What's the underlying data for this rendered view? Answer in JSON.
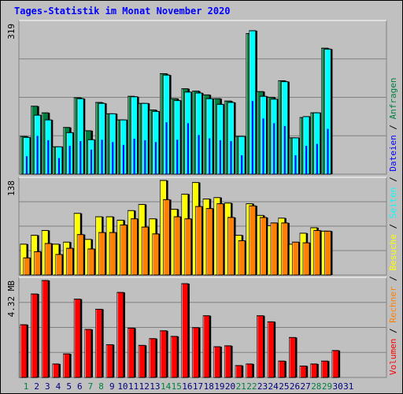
{
  "title": "Tages-Statistik im Monat November 2020",
  "colors": {
    "background": "#c0c0c0",
    "anfragen": "#008040",
    "dateien": "#0000ff",
    "seiten": "#00ffff",
    "besuche": "#ffff00",
    "rechner": "#ff8000",
    "volumen": "#ff0000",
    "weekday_label": "#000080",
    "weekend_label": "#008040"
  },
  "side_legend": {
    "sep": " / ",
    "anfragen": "Anfragen",
    "dateien": "Dateien",
    "seiten": "Seiten",
    "besuche": "Besuche",
    "rechner": "Rechner",
    "volumen": "Volumen"
  },
  "chart_data": [
    {
      "type": "bar",
      "panel": "top",
      "y_max_label": "319",
      "ylim": [
        0,
        319
      ],
      "grid": true,
      "categories": [
        "1",
        "2",
        "3",
        "4",
        "5",
        "6",
        "7",
        "8",
        "9",
        "10",
        "11",
        "12",
        "13",
        "14",
        "15",
        "16",
        "17",
        "18",
        "19",
        "20",
        "21",
        "22",
        "23",
        "24",
        "25",
        "26",
        "27",
        "28",
        "29",
        "30"
      ],
      "series": [
        {
          "name": "Anfragen",
          "values": [
            80,
            144,
            130,
            58,
            99,
            162,
            92,
            152,
            128,
            115,
            165,
            150,
            136,
            213,
            160,
            181,
            176,
            168,
            160,
            155,
            80,
            298,
            175,
            163,
            198,
            77,
            120,
            130,
            267,
            0
          ]
        },
        {
          "name": "Dateien",
          "values": [
            38,
            81,
            72,
            34,
            60,
            70,
            52,
            73,
            68,
            62,
            75,
            72,
            68,
            110,
            73,
            108,
            83,
            76,
            72,
            70,
            40,
            155,
            118,
            108,
            102,
            40,
            60,
            64,
            96,
            0
          ]
        },
        {
          "name": "Seiten",
          "values": [
            78,
            125,
            115,
            58,
            88,
            160,
            73,
            150,
            128,
            115,
            164,
            150,
            133,
            210,
            156,
            174,
            172,
            160,
            148,
            152,
            80,
            304,
            165,
            159,
            196,
            77,
            122,
            130,
            265,
            0
          ]
        }
      ]
    },
    {
      "type": "bar",
      "panel": "middle",
      "y_max_label": "138",
      "ylim": [
        0,
        138
      ],
      "grid": true,
      "categories": [
        "1",
        "2",
        "3",
        "4",
        "5",
        "6",
        "7",
        "8",
        "9",
        "10",
        "11",
        "12",
        "13",
        "14",
        "15",
        "16",
        "17",
        "18",
        "19",
        "20",
        "21",
        "22",
        "23",
        "24",
        "25",
        "26",
        "27",
        "28",
        "29",
        "30"
      ],
      "series": [
        {
          "name": "Besuche",
          "values": [
            45,
            58,
            65,
            45,
            48,
            90,
            52,
            85,
            85,
            80,
            94,
            103,
            82,
            138,
            96,
            118,
            135,
            111,
            113,
            105,
            58,
            104,
            87,
            72,
            83,
            45,
            61,
            69,
            64,
            0
          ]
        },
        {
          "name": "Rechner",
          "values": [
            25,
            34,
            46,
            30,
            39,
            59,
            38,
            62,
            62,
            73,
            82,
            70,
            60,
            110,
            85,
            82,
            100,
            97,
            104,
            84,
            50,
            101,
            84,
            76,
            76,
            48,
            47,
            65,
            64,
            0
          ]
        }
      ]
    },
    {
      "type": "bar",
      "panel": "bottom",
      "y_max_label": "4.32 MB",
      "ylim": [
        0,
        4.32
      ],
      "grid": true,
      "categories": [
        "1",
        "2",
        "3",
        "4",
        "5",
        "6",
        "7",
        "8",
        "9",
        "10",
        "11",
        "12",
        "13",
        "14",
        "15",
        "16",
        "17",
        "18",
        "19",
        "20",
        "21",
        "22",
        "23",
        "24",
        "25",
        "26",
        "27",
        "28",
        "29",
        "30"
      ],
      "series": [
        {
          "name": "Volumen",
          "values": [
            2.35,
            3.72,
            4.32,
            0.6,
            1.05,
            3.49,
            2.14,
            3.04,
            1.46,
            3.79,
            2.2,
            1.43,
            1.73,
            2.08,
            1.83,
            4.18,
            2.22,
            2.75,
            1.37,
            1.41,
            0.53,
            0.6,
            2.75,
            2.48,
            0.73,
            1.78,
            0.51,
            0.6,
            0.73,
            1.2
          ]
        }
      ]
    }
  ],
  "x_axis": {
    "labels": [
      "1",
      "2",
      "3",
      "4",
      "5",
      "6",
      "7",
      "8",
      "9",
      "10",
      "11",
      "12",
      "13",
      "14",
      "15",
      "16",
      "17",
      "18",
      "19",
      "20",
      "21",
      "22",
      "23",
      "24",
      "25",
      "26",
      "27",
      "28",
      "29",
      "30",
      "31"
    ],
    "weekend": [
      1,
      7,
      8,
      14,
      15,
      21,
      22,
      28,
      29
    ]
  }
}
